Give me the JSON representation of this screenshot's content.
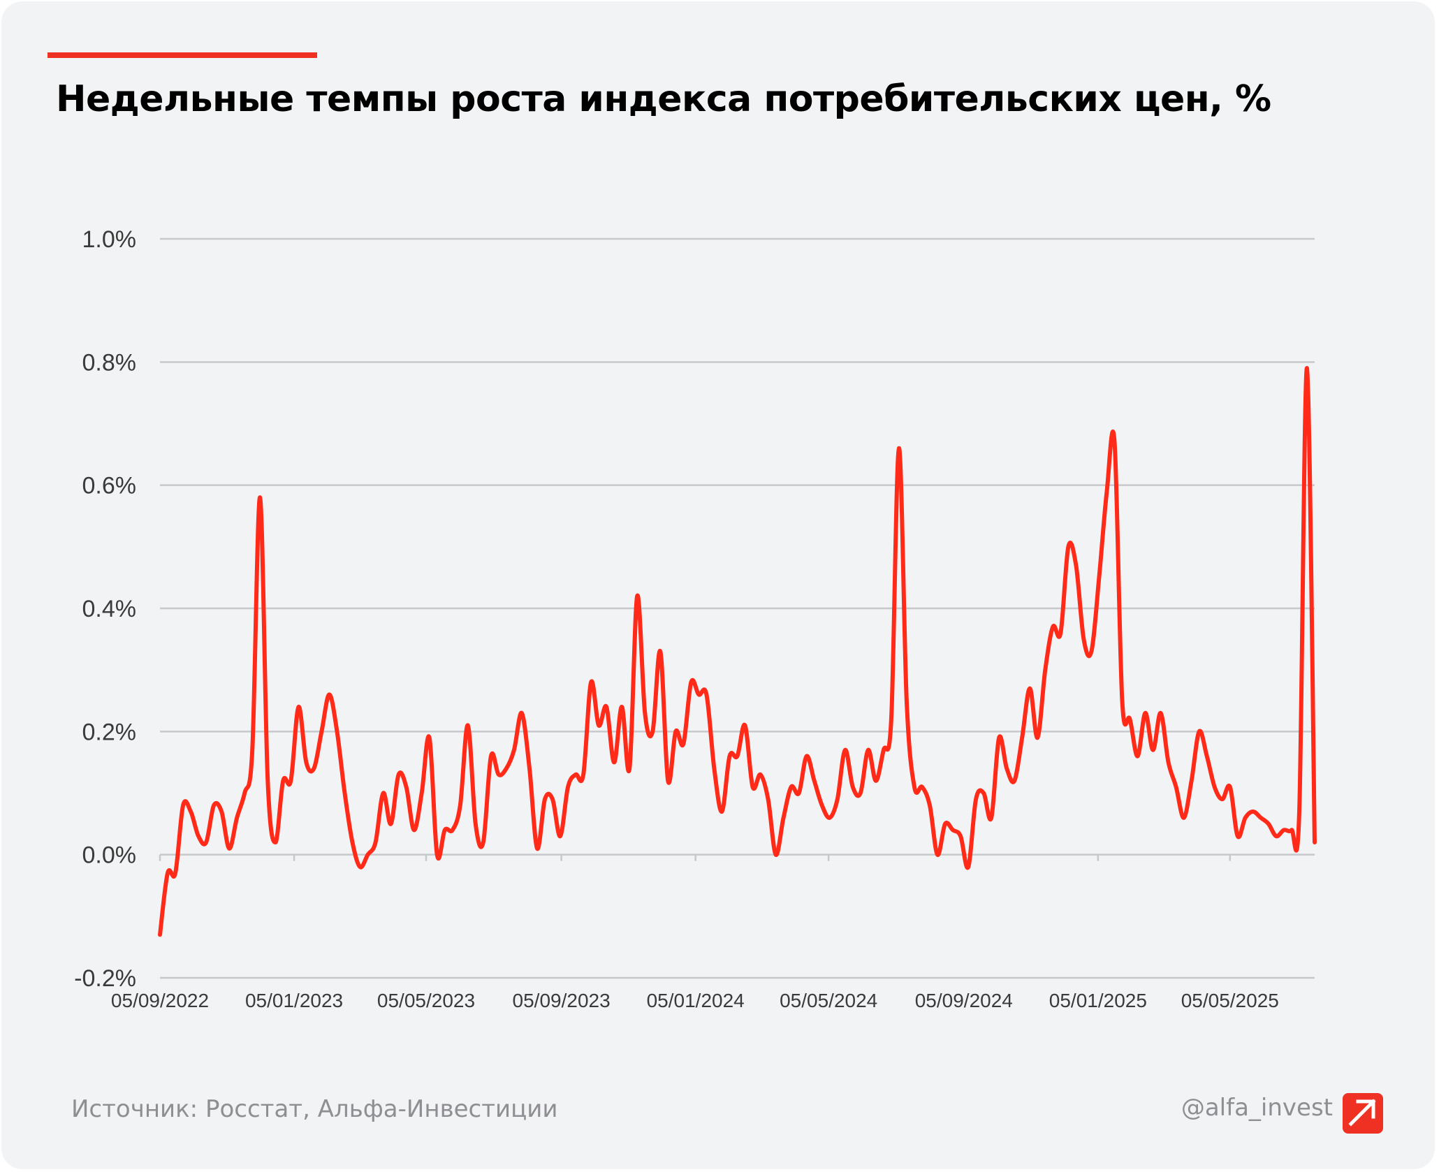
{
  "title": "Недельные темпы роста индекса потребительских цен, %",
  "footer": {
    "source": "Источник: Росстат, Альфа-Инвестиции",
    "handle": "@alfa_invest",
    "logo_icon": "alfa-arrow-icon"
  },
  "colors": {
    "accent": "#ef3124",
    "line": "#ff2a17",
    "grid": "#c7c8cc"
  },
  "chart_data": {
    "type": "line",
    "title": "Недельные темпы роста индекса потребительских цен, %",
    "xlabel": "",
    "ylabel": "",
    "ylim": [
      -0.2,
      1.0
    ],
    "y_ticks": [
      -0.2,
      0.0,
      0.2,
      0.4,
      0.6,
      0.8,
      1.0
    ],
    "y_tick_labels": [
      "-0.2%",
      "0.0%",
      "0.2%",
      "0.4%",
      "0.6%",
      "0.8%",
      "1.0%"
    ],
    "x_ticks": [
      "2022-09-05",
      "2023-01-05",
      "2023-05-05",
      "2023-09-05",
      "2024-01-05",
      "2024-05-05",
      "2024-09-05",
      "2025-01-05",
      "2025-05-05"
    ],
    "x_tick_labels": [
      "05/09/2022",
      "05/01/2023",
      "05/05/2023",
      "05/09/2023",
      "05/01/2024",
      "05/05/2024",
      "05/09/2024",
      "05/01/2025",
      "05/05/2025"
    ],
    "grid": true,
    "legend": "none",
    "series": [
      {
        "name": "",
        "color": "#ff2a17",
        "points": [
          [
            "2022-09-05",
            -0.13
          ],
          [
            "2022-09-12",
            -0.03
          ],
          [
            "2022-09-19",
            -0.03
          ],
          [
            "2022-09-26",
            0.08
          ],
          [
            "2022-10-03",
            0.07
          ],
          [
            "2022-10-10",
            0.03
          ],
          [
            "2022-10-17",
            0.02
          ],
          [
            "2022-10-24",
            0.08
          ],
          [
            "2022-10-31",
            0.07
          ],
          [
            "2022-11-07",
            0.01
          ],
          [
            "2022-11-14",
            0.06
          ],
          [
            "2022-11-21",
            0.1
          ],
          [
            "2022-11-28",
            0.17
          ],
          [
            "2022-12-05",
            0.58
          ],
          [
            "2022-12-12",
            0.12
          ],
          [
            "2022-12-19",
            0.02
          ],
          [
            "2022-12-26",
            0.12
          ],
          [
            "2023-01-02",
            0.12
          ],
          [
            "2023-01-09",
            0.24
          ],
          [
            "2023-01-16",
            0.15
          ],
          [
            "2023-01-23",
            0.14
          ],
          [
            "2023-01-30",
            0.2
          ],
          [
            "2023-02-06",
            0.26
          ],
          [
            "2023-02-13",
            0.2
          ],
          [
            "2023-02-20",
            0.1
          ],
          [
            "2023-02-27",
            0.02
          ],
          [
            "2023-03-06",
            -0.02
          ],
          [
            "2023-03-13",
            0.0
          ],
          [
            "2023-03-20",
            0.02
          ],
          [
            "2023-03-27",
            0.1
          ],
          [
            "2023-04-03",
            0.05
          ],
          [
            "2023-04-10",
            0.13
          ],
          [
            "2023-04-17",
            0.11
          ],
          [
            "2023-04-24",
            0.04
          ],
          [
            "2023-05-01",
            0.1
          ],
          [
            "2023-05-08",
            0.19
          ],
          [
            "2023-05-15",
            0.0
          ],
          [
            "2023-05-22",
            0.04
          ],
          [
            "2023-05-29",
            0.04
          ],
          [
            "2023-06-05",
            0.08
          ],
          [
            "2023-06-12",
            0.21
          ],
          [
            "2023-06-19",
            0.05
          ],
          [
            "2023-06-26",
            0.02
          ],
          [
            "2023-07-03",
            0.16
          ],
          [
            "2023-07-10",
            0.13
          ],
          [
            "2023-07-17",
            0.14
          ],
          [
            "2023-07-24",
            0.17
          ],
          [
            "2023-07-31",
            0.23
          ],
          [
            "2023-08-07",
            0.14
          ],
          [
            "2023-08-14",
            0.01
          ],
          [
            "2023-08-21",
            0.09
          ],
          [
            "2023-08-28",
            0.09
          ],
          [
            "2023-09-04",
            0.03
          ],
          [
            "2023-09-11",
            0.11
          ],
          [
            "2023-09-18",
            0.13
          ],
          [
            "2023-09-25",
            0.13
          ],
          [
            "2023-10-02",
            0.28
          ],
          [
            "2023-10-09",
            0.21
          ],
          [
            "2023-10-16",
            0.24
          ],
          [
            "2023-10-23",
            0.15
          ],
          [
            "2023-10-30",
            0.24
          ],
          [
            "2023-11-06",
            0.14
          ],
          [
            "2023-11-13",
            0.42
          ],
          [
            "2023-11-20",
            0.23
          ],
          [
            "2023-11-27",
            0.2
          ],
          [
            "2023-12-04",
            0.33
          ],
          [
            "2023-12-11",
            0.12
          ],
          [
            "2023-12-18",
            0.2
          ],
          [
            "2023-12-25",
            0.18
          ],
          [
            "2024-01-01",
            0.28
          ],
          [
            "2024-01-08",
            0.26
          ],
          [
            "2024-01-15",
            0.26
          ],
          [
            "2024-01-22",
            0.14
          ],
          [
            "2024-01-29",
            0.07
          ],
          [
            "2024-02-05",
            0.16
          ],
          [
            "2024-02-12",
            0.16
          ],
          [
            "2024-02-19",
            0.21
          ],
          [
            "2024-02-26",
            0.11
          ],
          [
            "2024-03-04",
            0.13
          ],
          [
            "2024-03-11",
            0.09
          ],
          [
            "2024-03-18",
            0.0
          ],
          [
            "2024-03-25",
            0.06
          ],
          [
            "2024-04-01",
            0.11
          ],
          [
            "2024-04-08",
            0.1
          ],
          [
            "2024-04-15",
            0.16
          ],
          [
            "2024-04-22",
            0.12
          ],
          [
            "2024-04-29",
            0.08
          ],
          [
            "2024-05-06",
            0.06
          ],
          [
            "2024-05-13",
            0.09
          ],
          [
            "2024-05-20",
            0.17
          ],
          [
            "2024-05-27",
            0.11
          ],
          [
            "2024-06-03",
            0.1
          ],
          [
            "2024-06-10",
            0.17
          ],
          [
            "2024-06-17",
            0.12
          ],
          [
            "2024-06-24",
            0.17
          ],
          [
            "2024-07-01",
            0.22
          ],
          [
            "2024-07-08",
            0.66
          ],
          [
            "2024-07-15",
            0.25
          ],
          [
            "2024-07-22",
            0.11
          ],
          [
            "2024-07-29",
            0.11
          ],
          [
            "2024-08-05",
            0.08
          ],
          [
            "2024-08-12",
            0.0
          ],
          [
            "2024-08-19",
            0.05
          ],
          [
            "2024-08-26",
            0.04
          ],
          [
            "2024-09-02",
            0.03
          ],
          [
            "2024-09-09",
            -0.02
          ],
          [
            "2024-09-16",
            0.09
          ],
          [
            "2024-09-23",
            0.1
          ],
          [
            "2024-09-30",
            0.06
          ],
          [
            "2024-10-07",
            0.19
          ],
          [
            "2024-10-14",
            0.14
          ],
          [
            "2024-10-21",
            0.12
          ],
          [
            "2024-10-28",
            0.19
          ],
          [
            "2024-11-04",
            0.27
          ],
          [
            "2024-11-11",
            0.19
          ],
          [
            "2024-11-18",
            0.3
          ],
          [
            "2024-11-25",
            0.37
          ],
          [
            "2024-12-02",
            0.36
          ],
          [
            "2024-12-09",
            0.5
          ],
          [
            "2024-12-16",
            0.47
          ],
          [
            "2024-12-23",
            0.35
          ],
          [
            "2024-12-30",
            0.33
          ],
          [
            "2025-01-06",
            0.45
          ],
          [
            "2025-01-13",
            0.59
          ],
          [
            "2025-01-20",
            0.67
          ],
          [
            "2025-01-27",
            0.25
          ],
          [
            "2025-02-03",
            0.22
          ],
          [
            "2025-02-10",
            0.16
          ],
          [
            "2025-02-17",
            0.23
          ],
          [
            "2025-02-24",
            0.17
          ],
          [
            "2025-03-03",
            0.23
          ],
          [
            "2025-03-10",
            0.15
          ],
          [
            "2025-03-17",
            0.11
          ],
          [
            "2025-03-24",
            0.06
          ],
          [
            "2025-03-31",
            0.12
          ],
          [
            "2025-04-07",
            0.2
          ],
          [
            "2025-04-14",
            0.16
          ],
          [
            "2025-04-21",
            0.11
          ],
          [
            "2025-04-28",
            0.09
          ],
          [
            "2025-05-05",
            0.11
          ],
          [
            "2025-05-12",
            0.03
          ],
          [
            "2025-05-19",
            0.06
          ],
          [
            "2025-05-26",
            0.07
          ],
          [
            "2025-06-02",
            0.06
          ],
          [
            "2025-06-09",
            0.05
          ],
          [
            "2025-06-16",
            0.03
          ],
          [
            "2025-06-23",
            0.04
          ],
          [
            "2025-06-30",
            0.04
          ],
          [
            "2025-07-07",
            0.07
          ],
          [
            "2025-07-14",
            0.79
          ],
          [
            "2025-07-21",
            0.02
          ]
        ]
      }
    ]
  }
}
